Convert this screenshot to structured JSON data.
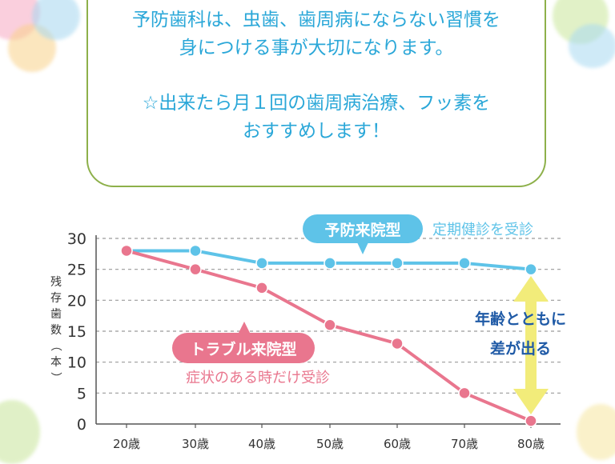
{
  "note": {
    "line1": "予防歯科は、虫歯、歯周病にならない習慣を",
    "line2": "身につける事が大切になります。",
    "line3": "☆出来たら月１回の歯周病治療、フッ素を",
    "line4": "おすすめします！"
  },
  "chart_data": {
    "type": "line",
    "ylabel": "残存歯数（本）",
    "xlabel": "",
    "categories": [
      "20歳",
      "30歳",
      "40歳",
      "50歳",
      "60歳",
      "70歳",
      "80歳"
    ],
    "yticks": [
      0,
      5,
      10,
      15,
      20,
      25,
      30
    ],
    "ylim": [
      0,
      30
    ],
    "grid": "dashed horizontal",
    "series": [
      {
        "name": "予防来院型",
        "caption": "定期健診を受診",
        "color": "#5ec3e8",
        "values": [
          28,
          28,
          26,
          26,
          26,
          26,
          25
        ]
      },
      {
        "name": "トラブル来院型",
        "caption": "症状のある時だけ受診",
        "color": "#e9768e",
        "values": [
          28,
          25,
          22,
          16,
          13,
          5,
          0.5
        ]
      }
    ],
    "annotation": {
      "line1": "年齢とともに",
      "line2": "差が出る",
      "color": "#1f5aa6",
      "arrow_color": "#f2ec7a"
    }
  }
}
